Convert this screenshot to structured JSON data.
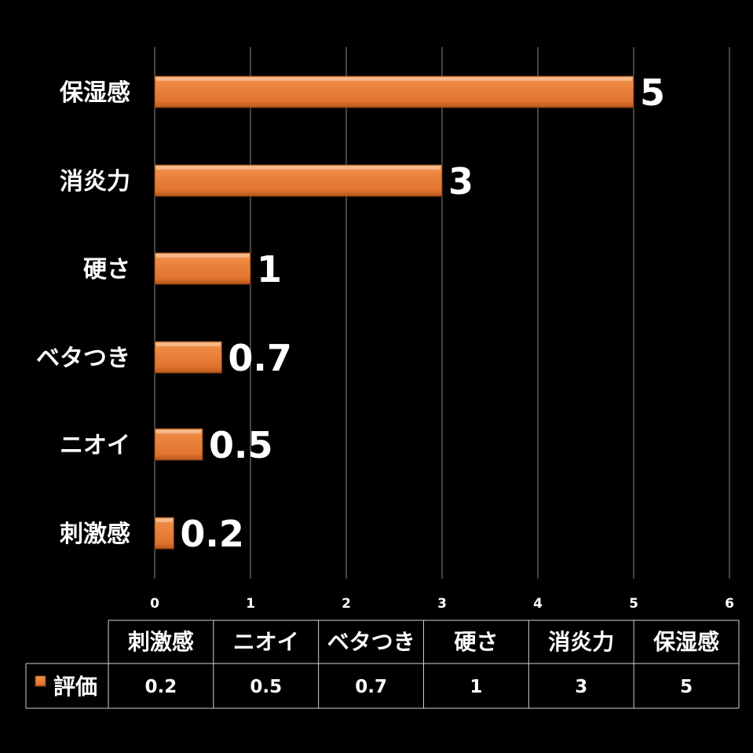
{
  "chart_data": {
    "type": "bar",
    "orientation": "horizontal",
    "categories": [
      "刺激感",
      "ニオイ",
      "ベタつき",
      "硬さ",
      "消炎力",
      "保湿感"
    ],
    "series": [
      {
        "name": "評価",
        "values": [
          0.2,
          0.5,
          0.7,
          1,
          3,
          5
        ]
      }
    ],
    "data_labels": [
      "0.2",
      "0.5",
      "0.7",
      "1",
      "3",
      "5"
    ],
    "xticks": [
      "0",
      "1",
      "2",
      "3",
      "4",
      "5",
      "6"
    ],
    "xlim": [
      0,
      6
    ],
    "grid": true,
    "legend_placement": "data-table",
    "bar_color": "#E8803A",
    "background_color": "#000000",
    "data_table": {
      "row_header": "評価",
      "columns": [
        "刺激感",
        "ニオイ",
        "ベタつき",
        "硬さ",
        "消炎力",
        "保湿感"
      ],
      "values": [
        "0.2",
        "0.5",
        "0.7",
        "1",
        "3",
        "5"
      ]
    }
  }
}
